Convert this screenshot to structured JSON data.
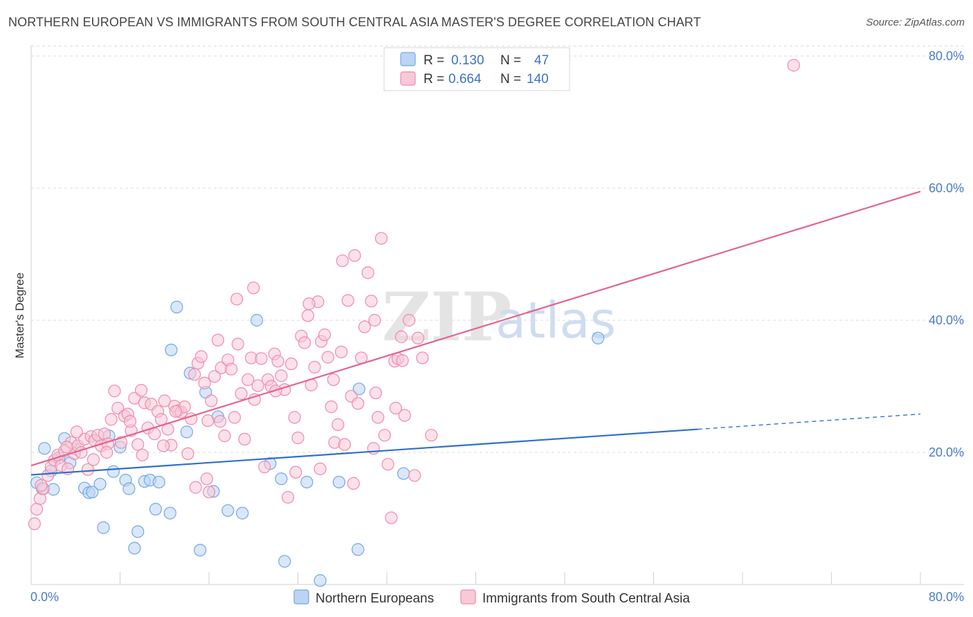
{
  "title": "NORTHERN EUROPEAN VS IMMIGRANTS FROM SOUTH CENTRAL ASIA MASTER'S DEGREE CORRELATION CHART",
  "source": "Source: ZipAtlas.com",
  "watermark": {
    "zip": "ZIP",
    "atlas": "atlas"
  },
  "legend": {
    "r_label": "R =",
    "n_label": "N =",
    "series1": {
      "r": "0.130",
      "n": "47"
    },
    "series2": {
      "r": "0.664",
      "n": "140"
    }
  },
  "colors": {
    "blue": "#6fa8e8",
    "blue_fill": "#bcd4f3",
    "blue_line": "#2f6fcc",
    "pink": "#f08aaa",
    "pink_fill": "#f8c9d7",
    "pink_line": "#e4628e",
    "axis_text": "#4a7cc7",
    "grid": "#d9d9d9"
  },
  "chart_data": {
    "type": "scatter",
    "title": "NORTHERN EUROPEAN VS IMMIGRANTS FROM SOUTH CENTRAL ASIA MASTER'S DEGREE CORRELATION CHART",
    "xlabel": "",
    "ylabel": "Master's Degree",
    "xlim": [
      0,
      84
    ],
    "ylim": [
      0,
      82
    ],
    "x_tick_labels": {
      "left": "0.0%",
      "right": "80.0%"
    },
    "y_ticks": [
      {
        "value": 20,
        "label": "20.0%"
      },
      {
        "value": 40,
        "label": "40.0%"
      },
      {
        "value": 60,
        "label": "60.0%"
      },
      {
        "value": 80,
        "label": "80.0%"
      }
    ],
    "series": [
      {
        "name": "Northern Europeans",
        "color": "#6fa8e8",
        "r": 0.13,
        "n": 47,
        "trend": {
          "x0": 0,
          "y0": 16.6,
          "x1": 60,
          "y1": 23.5,
          "dash_to_x": 80,
          "dash_to_y": 25.8
        },
        "points": [
          [
            0.5,
            15.4
          ],
          [
            1.2,
            20.6
          ],
          [
            1.8,
            17.2
          ],
          [
            2.5,
            19.2
          ],
          [
            2.0,
            14.4
          ],
          [
            3.0,
            22.1
          ],
          [
            3.5,
            18.4
          ],
          [
            4.0,
            20.5
          ],
          [
            4.8,
            14.6
          ],
          [
            5.2,
            13.9
          ],
          [
            5.5,
            14.0
          ],
          [
            6.2,
            15.2
          ],
          [
            6.5,
            8.6
          ],
          [
            7.0,
            22.5
          ],
          [
            7.4,
            17.1
          ],
          [
            8.0,
            20.8
          ],
          [
            8.5,
            15.8
          ],
          [
            8.8,
            14.5
          ],
          [
            9.6,
            8.0
          ],
          [
            9.3,
            5.5
          ],
          [
            10.2,
            15.6
          ],
          [
            10.7,
            15.8
          ],
          [
            11.5,
            15.5
          ],
          [
            11.2,
            11.4
          ],
          [
            12.5,
            10.8
          ],
          [
            12.6,
            35.5
          ],
          [
            13.1,
            42.0
          ],
          [
            14.0,
            23.1
          ],
          [
            14.3,
            32.0
          ],
          [
            15.2,
            5.2
          ],
          [
            15.7,
            29.1
          ],
          [
            16.4,
            14.1
          ],
          [
            16.8,
            25.4
          ],
          [
            17.7,
            11.2
          ],
          [
            19.0,
            10.8
          ],
          [
            20.3,
            40.0
          ],
          [
            21.5,
            18.3
          ],
          [
            22.5,
            16.0
          ],
          [
            22.8,
            3.5
          ],
          [
            24.8,
            15.5
          ],
          [
            26.0,
            0.6
          ],
          [
            27.7,
            15.5
          ],
          [
            29.5,
            29.6
          ],
          [
            29.4,
            5.3
          ],
          [
            33.5,
            16.8
          ],
          [
            51.0,
            37.3
          ],
          [
            1.0,
            14.5
          ]
        ]
      },
      {
        "name": "Immigrants from South Central Asia",
        "color": "#f08aaa",
        "r": 0.664,
        "n": 140,
        "trend": {
          "x0": 0,
          "y0": 18.0,
          "x1": 80,
          "y1": 59.5
        },
        "points": [
          [
            0.3,
            9.2
          ],
          [
            0.5,
            11.4
          ],
          [
            0.8,
            13.0
          ],
          [
            1.1,
            14.5
          ],
          [
            1.5,
            16.5
          ],
          [
            1.8,
            17.8
          ],
          [
            2.1,
            18.8
          ],
          [
            2.4,
            19.6
          ],
          [
            2.7,
            18.0
          ],
          [
            3.0,
            20.2
          ],
          [
            3.3,
            17.5
          ],
          [
            3.6,
            21.5
          ],
          [
            3.9,
            19.8
          ],
          [
            4.2,
            21.0
          ],
          [
            4.5,
            20.0
          ],
          [
            4.8,
            22.0
          ],
          [
            5.1,
            17.4
          ],
          [
            5.4,
            22.4
          ],
          [
            5.7,
            21.8
          ],
          [
            6.0,
            22.6
          ],
          [
            6.3,
            21.0
          ],
          [
            6.6,
            22.8
          ],
          [
            6.9,
            21.3
          ],
          [
            7.2,
            25.0
          ],
          [
            7.5,
            29.3
          ],
          [
            7.8,
            26.7
          ],
          [
            8.1,
            21.5
          ],
          [
            8.4,
            25.5
          ],
          [
            8.7,
            25.8
          ],
          [
            9.0,
            23.3
          ],
          [
            9.3,
            28.2
          ],
          [
            9.6,
            21.2
          ],
          [
            9.9,
            29.4
          ],
          [
            10.2,
            27.5
          ],
          [
            10.5,
            23.7
          ],
          [
            10.8,
            27.3
          ],
          [
            11.1,
            22.8
          ],
          [
            11.4,
            26.2
          ],
          [
            11.7,
            25.0
          ],
          [
            12.0,
            27.8
          ],
          [
            12.3,
            23.5
          ],
          [
            12.6,
            21.1
          ],
          [
            12.9,
            27.0
          ],
          [
            13.2,
            26.3
          ],
          [
            13.5,
            26.1
          ],
          [
            13.8,
            26.9
          ],
          [
            14.1,
            19.8
          ],
          [
            14.4,
            25.1
          ],
          [
            14.7,
            31.8
          ],
          [
            15.0,
            33.5
          ],
          [
            15.3,
            34.5
          ],
          [
            15.6,
            30.5
          ],
          [
            15.9,
            24.8
          ],
          [
            16.2,
            27.8
          ],
          [
            16.5,
            31.5
          ],
          [
            16.8,
            37.0
          ],
          [
            17.1,
            32.8
          ],
          [
            17.4,
            22.5
          ],
          [
            17.7,
            34.0
          ],
          [
            18.0,
            32.6
          ],
          [
            18.3,
            25.3
          ],
          [
            18.6,
            36.4
          ],
          [
            18.9,
            28.9
          ],
          [
            19.2,
            22.0
          ],
          [
            19.5,
            31.0
          ],
          [
            19.8,
            34.3
          ],
          [
            20.1,
            28.0
          ],
          [
            20.4,
            30.1
          ],
          [
            20.7,
            34.2
          ],
          [
            21.0,
            17.8
          ],
          [
            21.3,
            31.0
          ],
          [
            21.6,
            30.0
          ],
          [
            21.9,
            34.9
          ],
          [
            22.2,
            33.8
          ],
          [
            22.5,
            31.6
          ],
          [
            22.8,
            29.5
          ],
          [
            23.1,
            13.2
          ],
          [
            23.4,
            33.4
          ],
          [
            23.7,
            25.3
          ],
          [
            24.0,
            22.2
          ],
          [
            24.3,
            37.6
          ],
          [
            24.6,
            36.6
          ],
          [
            24.9,
            40.7
          ],
          [
            25.2,
            30.2
          ],
          [
            25.5,
            32.9
          ],
          [
            25.8,
            42.8
          ],
          [
            26.1,
            36.8
          ],
          [
            26.4,
            37.8
          ],
          [
            26.7,
            34.4
          ],
          [
            27.0,
            26.9
          ],
          [
            27.3,
            21.5
          ],
          [
            27.6,
            24.2
          ],
          [
            27.9,
            35.2
          ],
          [
            28.2,
            21.2
          ],
          [
            28.5,
            43.0
          ],
          [
            28.8,
            28.5
          ],
          [
            29.1,
            49.8
          ],
          [
            29.4,
            27.4
          ],
          [
            29.7,
            34.3
          ],
          [
            30.0,
            39.0
          ],
          [
            30.3,
            47.2
          ],
          [
            30.6,
            42.9
          ],
          [
            30.9,
            40.0
          ],
          [
            31.2,
            25.3
          ],
          [
            31.5,
            52.4
          ],
          [
            31.8,
            22.6
          ],
          [
            32.1,
            18.2
          ],
          [
            32.4,
            10.1
          ],
          [
            32.7,
            33.8
          ],
          [
            33.0,
            34.2
          ],
          [
            33.3,
            37.5
          ],
          [
            33.6,
            25.6
          ],
          [
            34.0,
            40.0
          ],
          [
            34.5,
            16.5
          ],
          [
            3.2,
            20.8
          ],
          [
            4.1,
            23.1
          ],
          [
            5.6,
            18.9
          ],
          [
            6.8,
            20.0
          ],
          [
            8.9,
            24.7
          ],
          [
            10.0,
            19.6
          ],
          [
            11.9,
            21.0
          ],
          [
            13.0,
            26.2
          ],
          [
            14.8,
            14.7
          ],
          [
            15.8,
            16.0
          ],
          [
            16.0,
            14.0
          ],
          [
            17.0,
            24.7
          ],
          [
            18.5,
            43.2
          ],
          [
            20.0,
            44.9
          ],
          [
            22.0,
            29.3
          ],
          [
            23.8,
            17.0
          ],
          [
            25.0,
            42.5
          ],
          [
            26.0,
            17.5
          ],
          [
            27.2,
            31.0
          ],
          [
            28.0,
            49.0
          ],
          [
            29.0,
            15.3
          ],
          [
            30.8,
            20.6
          ],
          [
            31.0,
            29.0
          ],
          [
            32.8,
            26.7
          ],
          [
            33.4,
            33.9
          ],
          [
            34.8,
            37.3
          ],
          [
            35.2,
            34.3
          ],
          [
            36.0,
            22.6
          ],
          [
            68.6,
            78.6
          ],
          [
            0.9,
            15.0
          ]
        ]
      }
    ]
  },
  "bottom_legend": {
    "series1": "Northern Europeans",
    "series2": "Immigrants from South Central Asia"
  }
}
